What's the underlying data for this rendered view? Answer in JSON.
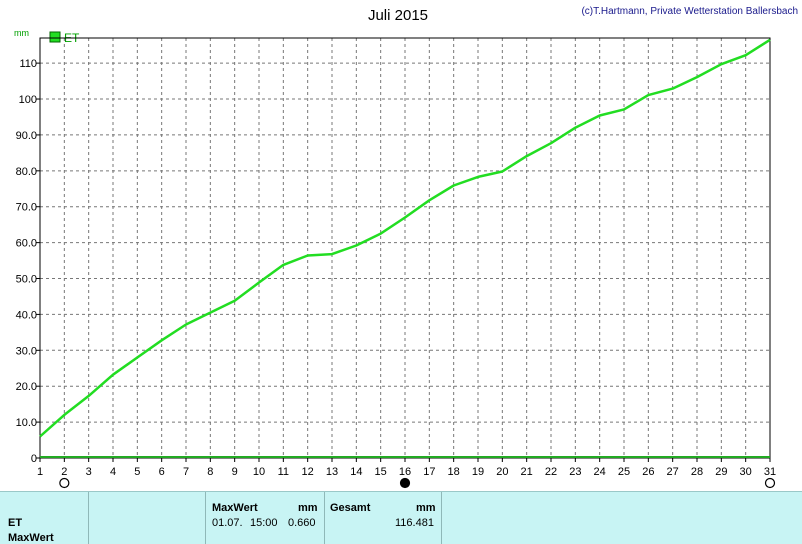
{
  "chart_data": {
    "type": "line",
    "title": "Juli 2015",
    "credit": "(c)T.Hartmann, Private Wetterstation Ballersbach",
    "ylabel": "mm",
    "xlabel": "",
    "xlim": [
      1,
      31
    ],
    "ylim": [
      0,
      117
    ],
    "x_ticks": [
      1,
      2,
      3,
      4,
      5,
      6,
      7,
      8,
      9,
      10,
      11,
      12,
      13,
      14,
      15,
      16,
      17,
      18,
      19,
      20,
      21,
      22,
      23,
      24,
      25,
      26,
      27,
      28,
      29,
      30,
      31
    ],
    "y_ticks": [
      0,
      10,
      20,
      30,
      40,
      50,
      60,
      70,
      80,
      90,
      100,
      110
    ],
    "y_tick_labels": [
      "0",
      "10.0",
      "20.0",
      "30.0",
      "40.0",
      "50.0",
      "60.0",
      "70.0",
      "80.0",
      "90.0",
      "100",
      "110"
    ],
    "grid": true,
    "legend": "top-left",
    "series": [
      {
        "name": "ET",
        "color": "#22dd22",
        "x": [
          1,
          2,
          3,
          4,
          5,
          6,
          7,
          8,
          9,
          10,
          11,
          12,
          13,
          14,
          15,
          16,
          17,
          18,
          19,
          20,
          21,
          22,
          23,
          24,
          25,
          26,
          27,
          28,
          29,
          30,
          31
        ],
        "values": [
          6.0,
          12.0,
          17.3,
          23.2,
          28.0,
          32.8,
          37.2,
          40.5,
          43.8,
          48.9,
          53.8,
          56.4,
          56.8,
          59.2,
          62.5,
          67.0,
          71.8,
          75.9,
          78.3,
          79.8,
          84.1,
          87.7,
          92.0,
          95.4,
          97.1,
          101.1,
          102.9,
          106.1,
          109.7,
          112.2,
          116.5
        ]
      }
    ],
    "markers": [
      {
        "x": 2,
        "style": "open-circle"
      },
      {
        "x": 16,
        "style": "filled-circle"
      },
      {
        "x": 31,
        "style": "open-circle"
      }
    ]
  },
  "info": {
    "row_label": "ET",
    "row_label2": "MaxWert",
    "maxwert_header": "MaxWert",
    "maxwert_unit": "mm",
    "maxwert_date": "01.07.",
    "maxwert_time": "15:00",
    "maxwert_value": "0.660",
    "gesamt_header": "Gesamt",
    "gesamt_unit": "mm",
    "gesamt_value": "116.481"
  }
}
